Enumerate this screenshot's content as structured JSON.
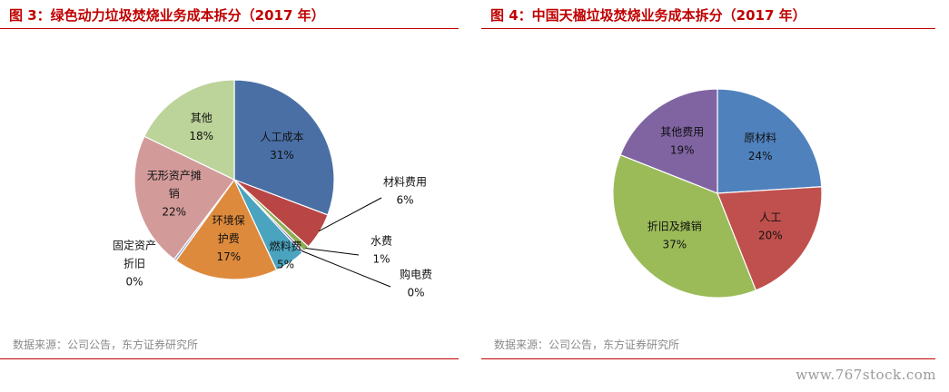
{
  "chart_data": [
    {
      "type": "pie",
      "title": "图 3：绿色动力垃圾焚烧业务成本拆分（2017 年）",
      "source": "数据来源：公司公告，东方证券研究所",
      "slices": [
        {
          "lines": [
            "人工成本"
          ],
          "value": 31,
          "label": "31%",
          "color": "#4a6fa5"
        },
        {
          "lines": [
            "材料费用"
          ],
          "value": 6,
          "label": "6%",
          "color": "#b94545"
        },
        {
          "lines": [
            "水费"
          ],
          "value": 1,
          "label": "1%",
          "color": "#8eae52"
        },
        {
          "lines": [
            "购电费"
          ],
          "value": 0.4,
          "label": "0%",
          "color": "#7b68a8"
        },
        {
          "lines": [
            "燃料费"
          ],
          "value": 5,
          "label": "5%",
          "color": "#4aa4bf"
        },
        {
          "lines": [
            "环境保",
            "护费"
          ],
          "value": 17,
          "label": "17%",
          "color": "#de8a3c"
        },
        {
          "lines": [
            "固定资产",
            "折旧"
          ],
          "value": 0.4,
          "label": "0%",
          "color": "#95aacc"
        },
        {
          "lines": [
            "无形资产摊",
            "销"
          ],
          "value": 22,
          "label": "22%",
          "color": "#d39a9a"
        },
        {
          "lines": [
            "其他"
          ],
          "value": 18,
          "label": "18%",
          "color": "#bcd39a"
        }
      ]
    },
    {
      "type": "pie",
      "title": "图 4：中国天楹垃圾焚烧业务成本拆分（2017 年）",
      "source": "数据来源：公司公告，东方证券研究所",
      "slices": [
        {
          "lines": [
            "原材料"
          ],
          "value": 24,
          "label": "24%",
          "color": "#4f81bd"
        },
        {
          "lines": [
            "人工"
          ],
          "value": 20,
          "label": "20%",
          "color": "#c0504d"
        },
        {
          "lines": [
            "折旧及摊销"
          ],
          "value": 37,
          "label": "37%",
          "color": "#9bbb59"
        },
        {
          "lines": [
            "其他费用"
          ],
          "value": 19,
          "label": "19%",
          "color": "#8064a2"
        }
      ]
    }
  ],
  "watermark": "www.767stock.com"
}
